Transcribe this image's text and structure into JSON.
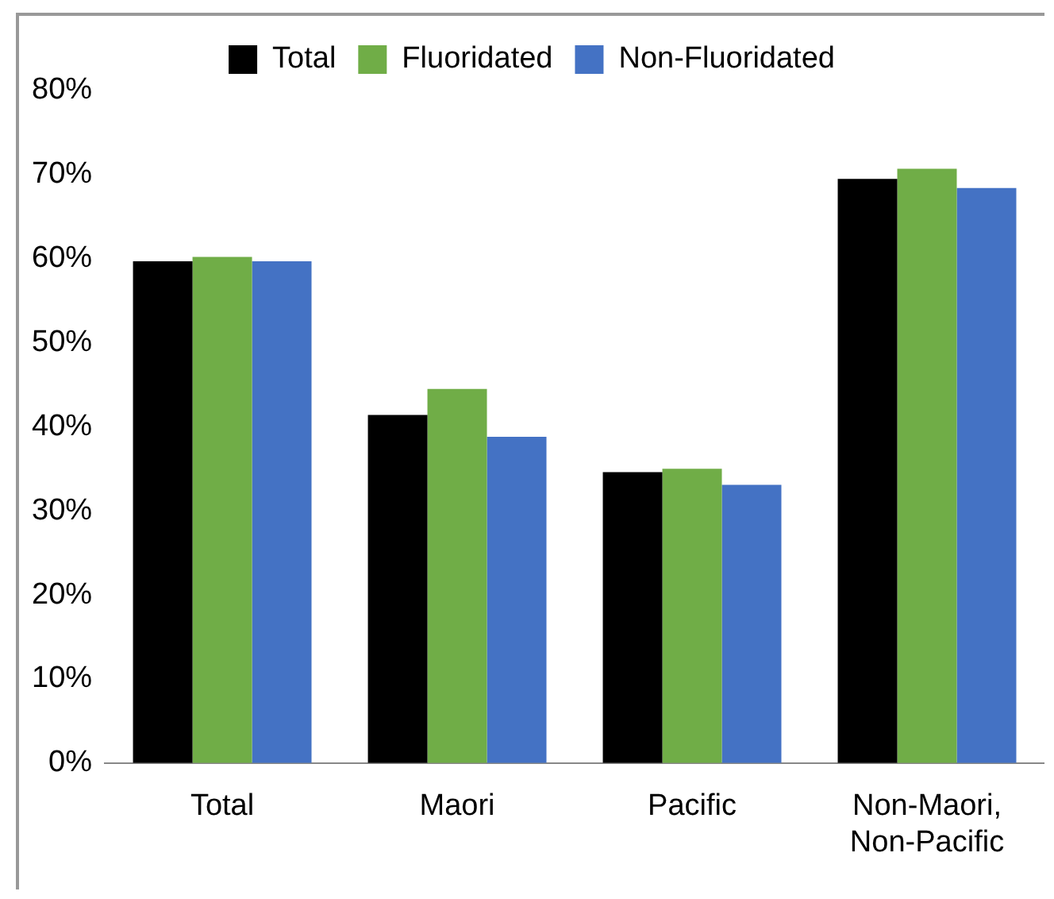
{
  "chart_data": {
    "type": "bar",
    "categories": [
      "Total",
      "Maori",
      "Pacific",
      "Non-Maori, Non-Pacific"
    ],
    "series": [
      {
        "name": "Total",
        "color": "#000000",
        "values": [
          59.7,
          41.4,
          34.6,
          69.5
        ]
      },
      {
        "name": "Fluoridated",
        "color": "#70ad47",
        "values": [
          60.2,
          44.5,
          35.0,
          70.7
        ]
      },
      {
        "name": "Non-Fluoridated",
        "color": "#4472c4",
        "values": [
          59.7,
          38.8,
          33.1,
          68.4
        ]
      }
    ],
    "ylim": [
      0,
      80
    ],
    "yticks": [
      {
        "value": 0,
        "label": "0%"
      },
      {
        "value": 10,
        "label": "10%"
      },
      {
        "value": 20,
        "label": "20%"
      },
      {
        "value": 30,
        "label": "30%"
      },
      {
        "value": 40,
        "label": "40%"
      },
      {
        "value": 50,
        "label": "50%"
      },
      {
        "value": 60,
        "label": "60%"
      },
      {
        "value": 70,
        "label": "70%"
      },
      {
        "value": 80,
        "label": "80%"
      }
    ],
    "grid": false,
    "legend": "top"
  }
}
